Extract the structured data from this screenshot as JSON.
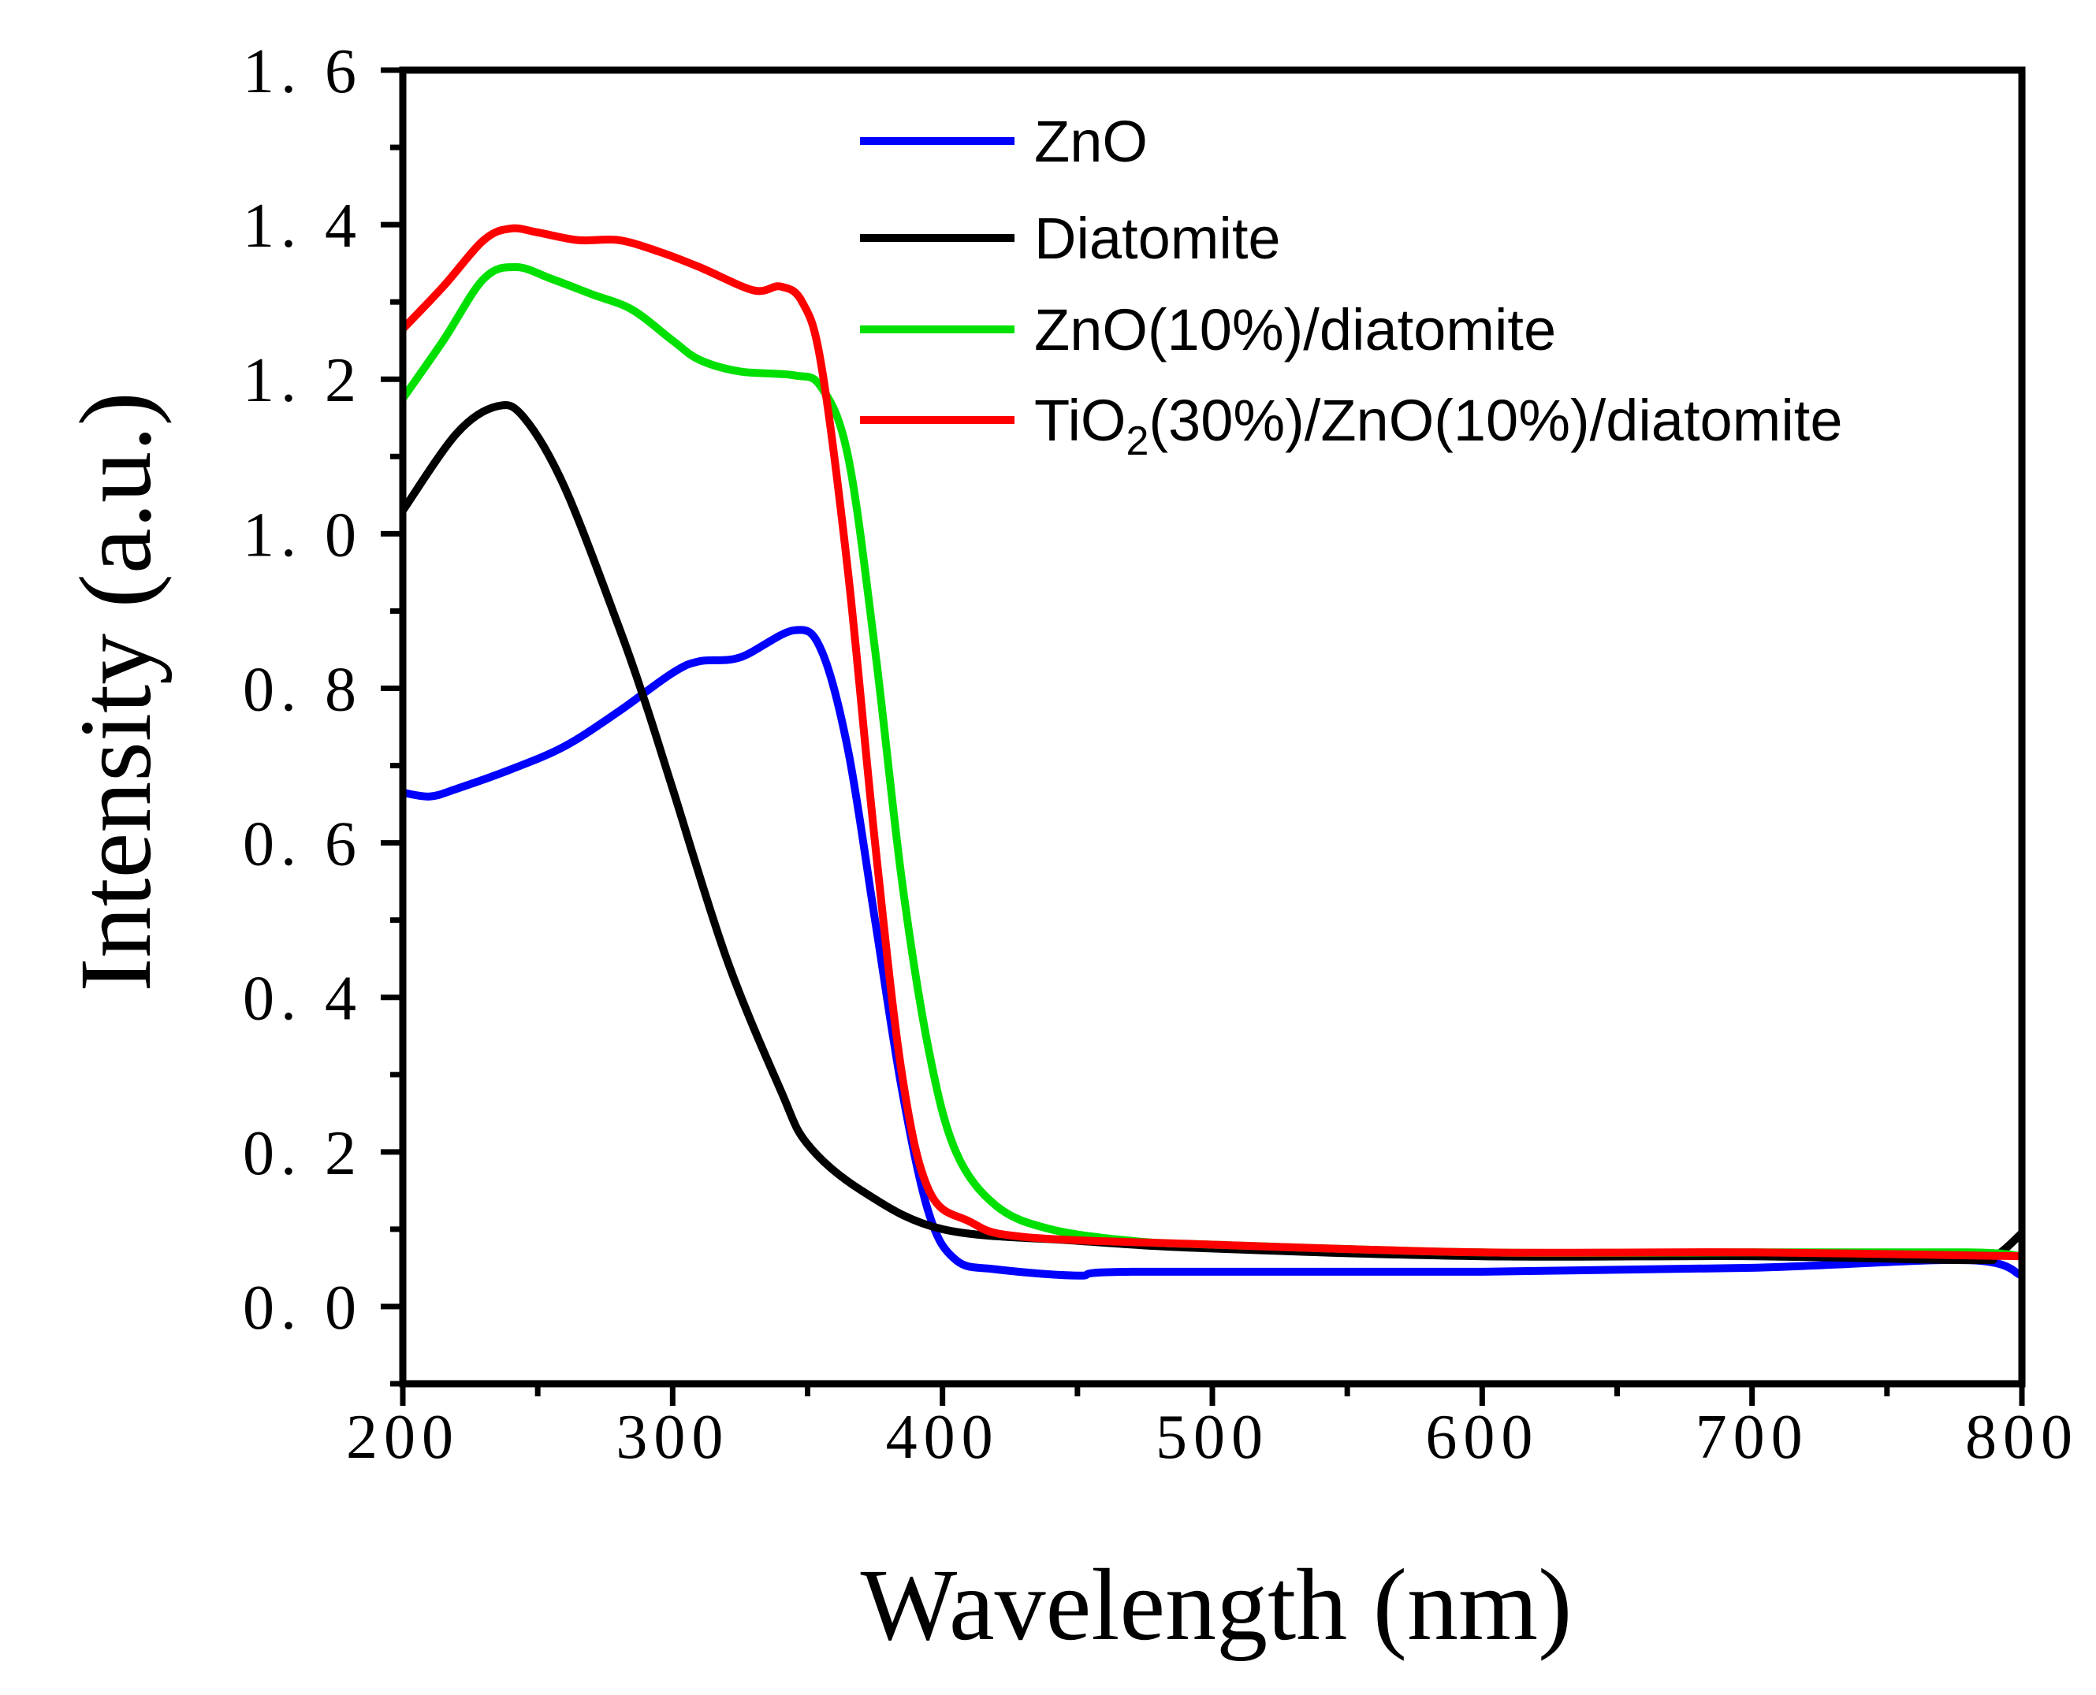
{
  "chart_data": {
    "type": "line",
    "xlabel": "Wavelength (nm)",
    "ylabel": "Intensity (a.u.)",
    "xlim": [
      200,
      800
    ],
    "ylim": [
      -0.1,
      1.6
    ],
    "xticks": [
      "200",
      "300",
      "400",
      "500",
      "600",
      "700",
      "800"
    ],
    "yticks": [
      "0.0",
      "0.2",
      "0.4",
      "0.6",
      "0.8",
      "1.0",
      "1.2",
      "1.4",
      "1.6"
    ],
    "grid": false,
    "legend_position": "top-right",
    "series": [
      {
        "name": "ZnO",
        "color": "#0000ff",
        "x": [
          200,
          210,
          220,
          240,
          260,
          280,
          300,
          310,
          325,
          345,
          355,
          365,
          375,
          385,
          395,
          405,
          420,
          450,
          470,
          600,
          700,
          780,
          800
        ],
        "y": [
          0.665,
          0.66,
          0.67,
          0.695,
          0.725,
          0.77,
          0.82,
          0.835,
          0.84,
          0.875,
          0.85,
          0.72,
          0.5,
          0.28,
          0.12,
          0.06,
          0.048,
          0.04,
          0.045,
          0.045,
          0.05,
          0.06,
          0.04
        ]
      },
      {
        "name": "Diatomite",
        "color": "#000000",
        "x": [
          200,
          220,
          235,
          245,
          260,
          280,
          290,
          300,
          320,
          340,
          350,
          370,
          400,
          450,
          500,
          600,
          700,
          780,
          790,
          800
        ],
        "y": [
          1.03,
          1.13,
          1.165,
          1.15,
          1.06,
          0.88,
          0.78,
          0.67,
          0.45,
          0.28,
          0.21,
          0.15,
          0.1,
          0.085,
          0.075,
          0.065,
          0.065,
          0.06,
          0.065,
          0.095
        ]
      },
      {
        "name": "ZnO(10%)/diatomite",
        "color": "#00e000",
        "x": [
          200,
          215,
          230,
          242,
          255,
          270,
          285,
          300,
          310,
          325,
          345,
          355,
          365,
          375,
          385,
          395,
          405,
          420,
          440,
          470,
          500,
          600,
          700,
          780,
          800
        ],
        "y": [
          1.175,
          1.25,
          1.33,
          1.345,
          1.33,
          1.31,
          1.29,
          1.25,
          1.225,
          1.21,
          1.205,
          1.19,
          1.1,
          0.85,
          0.55,
          0.33,
          0.2,
          0.13,
          0.1,
          0.085,
          0.08,
          0.07,
          0.07,
          0.07,
          0.065
        ]
      },
      {
        "name": "TiO2(30%)/ZnO(10%)/diatomite",
        "color": "#ff0000",
        "x": [
          200,
          215,
          230,
          240,
          250,
          265,
          280,
          295,
          310,
          330,
          340,
          348,
          355,
          365,
          375,
          385,
          395,
          410,
          430,
          500,
          600,
          700,
          800
        ],
        "y": [
          1.265,
          1.32,
          1.38,
          1.395,
          1.39,
          1.38,
          1.38,
          1.365,
          1.345,
          1.315,
          1.32,
          1.3,
          1.22,
          0.95,
          0.6,
          0.3,
          0.15,
          0.11,
          0.09,
          0.08,
          0.07,
          0.07,
          0.065
        ]
      }
    ]
  }
}
